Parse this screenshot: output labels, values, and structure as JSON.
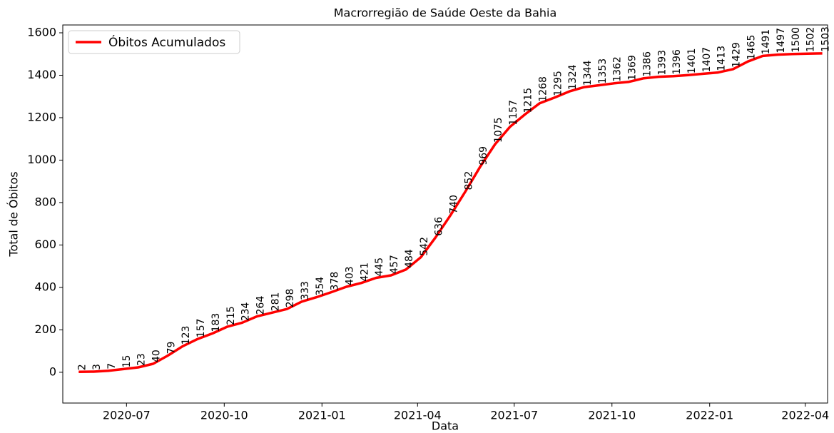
{
  "chart_data": {
    "type": "line",
    "title": "Macrorregião de Saúde Oeste da Bahia",
    "xlabel": "Data",
    "ylabel": "Total de Óbitos",
    "x": [
      "2020-05-17",
      "2020-05-31",
      "2020-06-14",
      "2020-06-28",
      "2020-07-12",
      "2020-07-26",
      "2020-08-09",
      "2020-08-23",
      "2020-09-06",
      "2020-09-20",
      "2020-10-04",
      "2020-10-18",
      "2020-11-01",
      "2020-11-15",
      "2020-11-29",
      "2020-12-13",
      "2020-12-27",
      "2021-01-10",
      "2021-01-24",
      "2021-02-07",
      "2021-02-21",
      "2021-03-07",
      "2021-03-21",
      "2021-04-04",
      "2021-04-18",
      "2021-05-02",
      "2021-05-16",
      "2021-05-30",
      "2021-06-13",
      "2021-06-27",
      "2021-07-11",
      "2021-07-25",
      "2021-08-08",
      "2021-08-22",
      "2021-09-05",
      "2021-09-19",
      "2021-10-03",
      "2021-10-17",
      "2021-10-31",
      "2021-11-14",
      "2021-11-28",
      "2021-12-12",
      "2021-12-26",
      "2022-01-09",
      "2022-01-23",
      "2022-02-06",
      "2022-02-20",
      "2022-03-06",
      "2022-03-20",
      "2022-04-03",
      "2022-04-17"
    ],
    "series": [
      {
        "name": "Óbitos Acumulados",
        "color": "#ff0000",
        "values": [
          2,
          3,
          7,
          15,
          23,
          40,
          79,
          123,
          157,
          183,
          215,
          234,
          264,
          281,
          298,
          333,
          354,
          378,
          403,
          421,
          445,
          457,
          484,
          542,
          636,
          740,
          852,
          969,
          1075,
          1157,
          1215,
          1268,
          1295,
          1324,
          1344,
          1353,
          1362,
          1369,
          1386,
          1393,
          1396,
          1401,
          1407,
          1413,
          1429,
          1465,
          1491,
          1497,
          1500,
          1502,
          1503
        ]
      }
    ],
    "xlim": [
      "2020-05-02",
      "2022-04-22"
    ],
    "xticks": [
      {
        "value": "2020-07-01",
        "label": "2020-07"
      },
      {
        "value": "2020-10-01",
        "label": "2020-10"
      },
      {
        "value": "2021-01-01",
        "label": "2021-01"
      },
      {
        "value": "2021-04-01",
        "label": "2021-04"
      },
      {
        "value": "2021-07-01",
        "label": "2021-07"
      },
      {
        "value": "2021-10-01",
        "label": "2021-10"
      },
      {
        "value": "2022-01-01",
        "label": "2022-01"
      },
      {
        "value": "2022-04-01",
        "label": "2022-04"
      }
    ],
    "ylim": [
      -145,
      1637
    ],
    "yticks": [
      0,
      200,
      400,
      600,
      800,
      1000,
      1200,
      1400,
      1600
    ],
    "legend": "upper left",
    "grid": false
  }
}
